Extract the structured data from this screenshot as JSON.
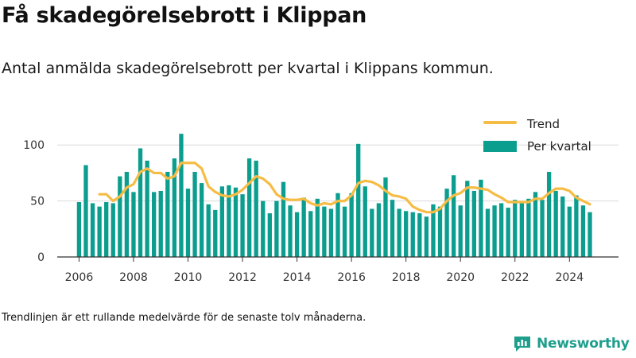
{
  "title": "Få skadegörelsebrott i Klippan",
  "subtitle": "Antal anmälda skadegörelsebrott per kvartal i Klippans kommun.",
  "note": "Trendlinjen är ett rullande medelvärde för de senaste tolv månaderna.",
  "brand": {
    "name": "Newsworthy",
    "icon": "newsworthy-logo-icon"
  },
  "colors": {
    "bars": "#0b9e8f",
    "trend": "#f6bc44",
    "axis": "#333333",
    "grid": "#d9d9d9"
  },
  "chart_data": {
    "type": "bar",
    "x_ticks": [
      "2006",
      "2008",
      "2010",
      "2012",
      "2014",
      "2016",
      "2018",
      "2020",
      "2022",
      "2024"
    ],
    "y_ticks": [
      "0",
      "50",
      "100"
    ],
    "ylim": [
      0,
      130
    ],
    "xlim": [
      2005.2,
      2025.8
    ],
    "grid": "horizontal",
    "legend_position": "top-right",
    "series": [
      {
        "name": "Per kvartal",
        "type": "bar",
        "x": [
          2006.0,
          2006.25,
          2006.5,
          2006.75,
          2007.0,
          2007.25,
          2007.5,
          2007.75,
          2008.0,
          2008.25,
          2008.5,
          2008.75,
          2009.0,
          2009.25,
          2009.5,
          2009.75,
          2010.0,
          2010.25,
          2010.5,
          2010.75,
          2011.0,
          2011.25,
          2011.5,
          2011.75,
          2012.0,
          2012.25,
          2012.5,
          2012.75,
          2013.0,
          2013.25,
          2013.5,
          2013.75,
          2014.0,
          2014.25,
          2014.5,
          2014.75,
          2015.0,
          2015.25,
          2015.5,
          2015.75,
          2016.0,
          2016.25,
          2016.5,
          2016.75,
          2017.0,
          2017.25,
          2017.5,
          2017.75,
          2018.0,
          2018.25,
          2018.5,
          2018.75,
          2019.0,
          2019.25,
          2019.5,
          2019.75,
          2020.0,
          2020.25,
          2020.5,
          2020.75,
          2021.0,
          2021.25,
          2021.5,
          2021.75,
          2022.0,
          2022.25,
          2022.5,
          2022.75,
          2023.0,
          2023.25,
          2023.5,
          2023.75,
          2024.0,
          2024.25,
          2024.5,
          2024.75
        ],
        "values": [
          49,
          82,
          48,
          45,
          49,
          48,
          72,
          76,
          58,
          97,
          86,
          58,
          59,
          76,
          88,
          110,
          61,
          76,
          66,
          47,
          42,
          63,
          64,
          62,
          56,
          88,
          86,
          50,
          39,
          50,
          67,
          46,
          40,
          53,
          41,
          52,
          45,
          43,
          57,
          45,
          57,
          101,
          63,
          43,
          48,
          71,
          51,
          43,
          41,
          40,
          39,
          36,
          47,
          45,
          61,
          73,
          46,
          68,
          59,
          69,
          43,
          46,
          48,
          44,
          51,
          50,
          52,
          58,
          51,
          76,
          59,
          54,
          45,
          55,
          46,
          40
        ]
      },
      {
        "name": "Trend",
        "type": "line",
        "x": [
          2006.75,
          2007.0,
          2007.25,
          2007.5,
          2007.75,
          2008.0,
          2008.25,
          2008.5,
          2008.75,
          2009.0,
          2009.25,
          2009.5,
          2009.75,
          2010.0,
          2010.25,
          2010.5,
          2010.75,
          2011.0,
          2011.25,
          2011.5,
          2011.75,
          2012.0,
          2012.25,
          2012.5,
          2012.75,
          2013.0,
          2013.25,
          2013.5,
          2013.75,
          2014.0,
          2014.25,
          2014.5,
          2014.75,
          2015.0,
          2015.25,
          2015.5,
          2015.75,
          2016.0,
          2016.25,
          2016.5,
          2016.75,
          2017.0,
          2017.25,
          2017.5,
          2017.75,
          2018.0,
          2018.25,
          2018.5,
          2018.75,
          2019.0,
          2019.25,
          2019.5,
          2019.75,
          2020.0,
          2020.25,
          2020.5,
          2020.75,
          2021.0,
          2021.25,
          2021.5,
          2021.75,
          2022.0,
          2022.25,
          2022.5,
          2022.75,
          2023.0,
          2023.25,
          2023.5,
          2023.75,
          2024.0,
          2024.25,
          2024.5,
          2024.75
        ],
        "values": [
          56,
          56,
          50,
          54,
          62,
          65,
          76,
          79,
          75,
          75,
          70,
          72,
          84,
          84,
          84,
          79,
          63,
          58,
          55,
          54,
          56,
          60,
          66,
          72,
          70,
          65,
          56,
          52,
          51,
          51,
          52,
          48,
          46,
          48,
          47,
          50,
          50,
          55,
          66,
          68,
          67,
          64,
          59,
          55,
          54,
          52,
          45,
          42,
          40,
          40,
          43,
          50,
          55,
          57,
          62,
          62,
          61,
          60,
          56,
          53,
          49,
          49,
          49,
          49,
          52,
          52,
          57,
          61,
          61,
          59,
          53,
          50,
          47
        ]
      }
    ]
  }
}
